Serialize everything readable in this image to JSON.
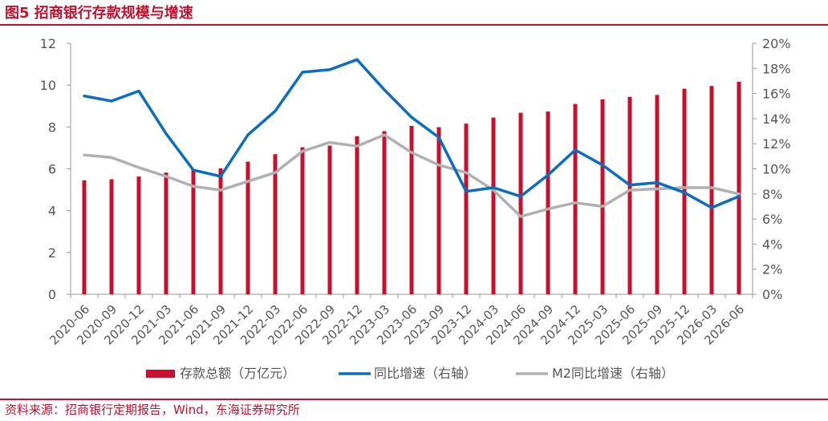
{
  "figure": {
    "title": "图5  招商银行存款规模与增速",
    "source": "资料来源：招商银行定期报告，Wind，东海证券研究所"
  },
  "colors": {
    "bar": "#c8102e",
    "yoy": "#0a6dbf",
    "m2": "#b0b0b0",
    "axis": "#999999",
    "text": "#555555"
  },
  "chart_data": {
    "type": "bar+line",
    "categories": [
      "2020-06",
      "2020-09",
      "2020-12",
      "2021-03",
      "2021-06",
      "2021-09",
      "2021-12",
      "2022-03",
      "2022-06",
      "2022-09",
      "2022-12",
      "2023-03",
      "2023-06",
      "2023-09",
      "2023-12",
      "2024-03",
      "2024-06",
      "2024-09",
      "2024-12",
      "2025-03",
      "2025-06",
      "2025-09",
      "2025-12",
      "2026-03",
      "2026-06"
    ],
    "left_axis": {
      "ylim": [
        0,
        12
      ],
      "ticks": [
        0,
        2,
        4,
        6,
        8,
        10,
        12
      ]
    },
    "right_axis": {
      "ylim": [
        0,
        20
      ],
      "ticks": [
        0,
        2,
        4,
        6,
        8,
        10,
        12,
        14,
        16,
        18,
        20
      ],
      "format": "percent"
    },
    "series": [
      {
        "name": "存款总额（万亿元）",
        "type": "bar",
        "axis": "left",
        "values": [
          5.45,
          5.5,
          5.63,
          5.82,
          5.98,
          6.02,
          6.34,
          6.7,
          7.03,
          7.11,
          7.56,
          7.8,
          8.05,
          7.99,
          8.16,
          8.45,
          8.68,
          8.74,
          9.1,
          9.32,
          9.44,
          9.53,
          9.83,
          9.96,
          10.16
        ]
      },
      {
        "name": "同比增速（右轴）",
        "type": "line",
        "axis": "right",
        "values": [
          15.8,
          15.4,
          16.2,
          12.8,
          9.9,
          9.4,
          12.7,
          14.6,
          17.7,
          17.9,
          18.7,
          16.3,
          14.1,
          12.5,
          8.2,
          8.5,
          7.8,
          9.5,
          11.5,
          10.3,
          8.7,
          8.9,
          8.1,
          6.9,
          7.8
        ]
      },
      {
        "name": "M2同比增速（右轴）",
        "type": "line",
        "axis": "right",
        "values": [
          11.1,
          10.9,
          10.1,
          9.4,
          8.6,
          8.3,
          9.0,
          9.7,
          11.4,
          12.1,
          11.8,
          12.7,
          11.3,
          10.3,
          9.7,
          8.3,
          6.2,
          6.8,
          7.3,
          7.0,
          8.3,
          8.4,
          8.5,
          8.5,
          8.0
        ]
      }
    ]
  }
}
